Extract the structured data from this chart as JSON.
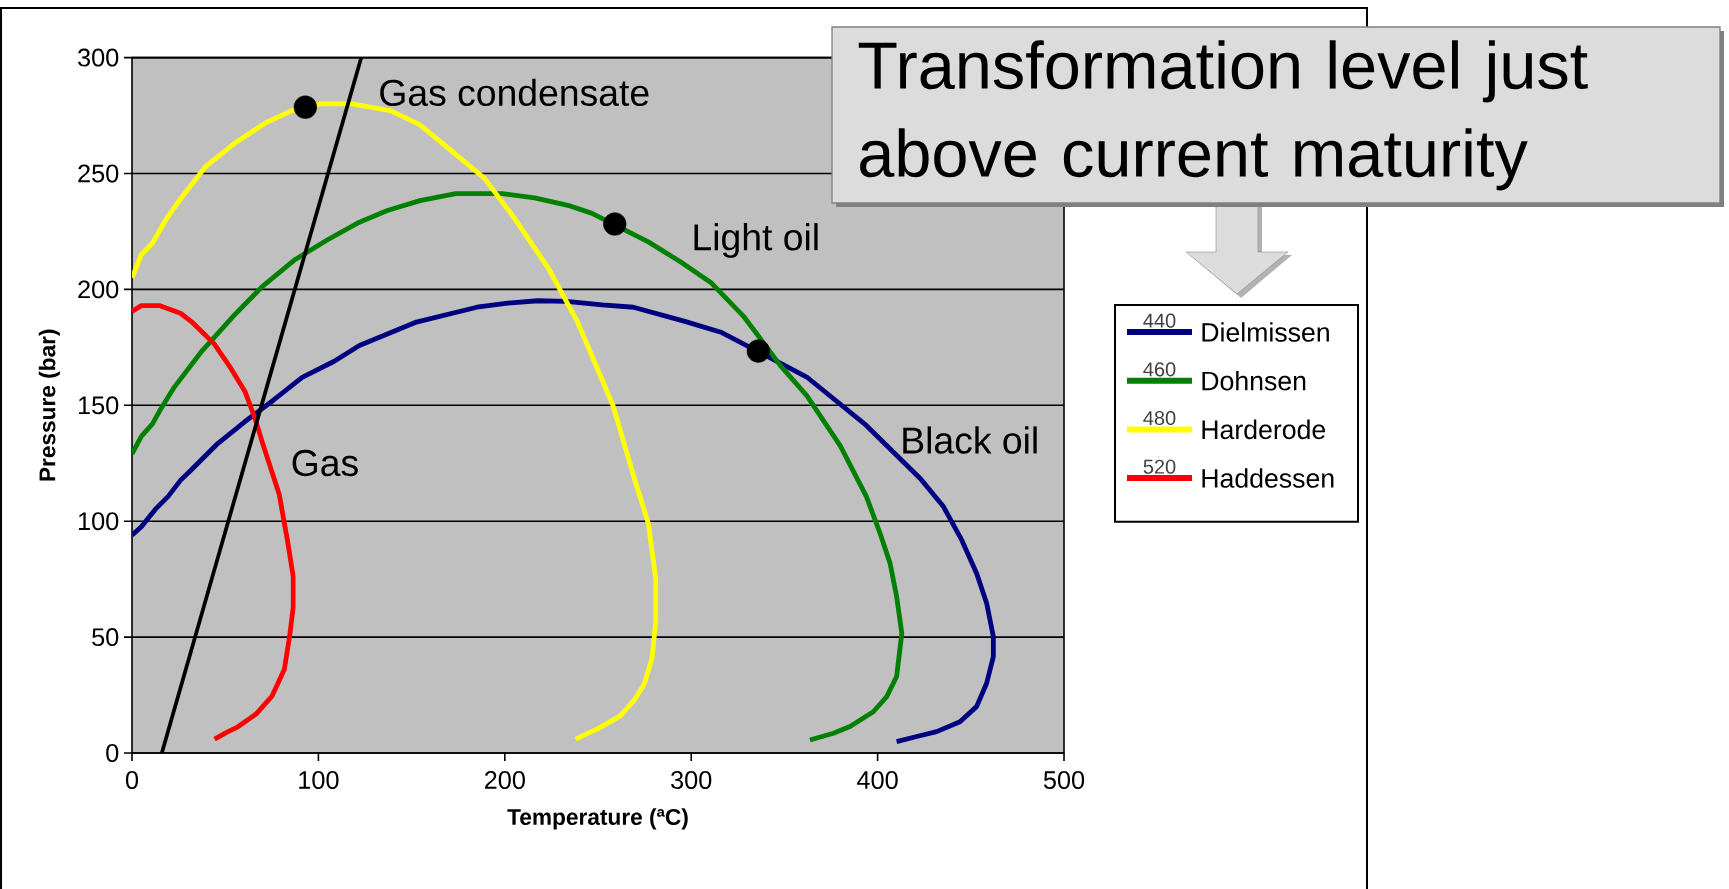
{
  "chart_data": {
    "type": "line",
    "xlabel": "Temperature (ªC)",
    "ylabel": "Pressure (bar)",
    "xlim": [
      0,
      500
    ],
    "xticks": [
      0,
      100,
      200,
      300,
      400,
      500
    ],
    "ylim": [
      0,
      300
    ],
    "yticks": [
      0,
      50,
      100,
      150,
      200,
      250,
      300
    ],
    "grid": "y",
    "legend": "right",
    "series": [
      {
        "name": "Dielmissen",
        "color": "#000080",
        "x": [
          0,
          5,
          12.7,
          19.4,
          26,
          32,
          45.3,
          60.6,
          76,
          91.3,
          108.5,
          122,
          152.6,
          185,
          200.5,
          217.7,
          233,
          252.2,
          269,
          296.6,
          316.4,
          336.3,
          362,
          393.8,
          423,
          435.3,
          445.1,
          453.1,
          458.5,
          462.1,
          462.1,
          458.5,
          453.1,
          444.2,
          431.7,
          421,
          410.2
        ],
        "values": [
          94,
          97.6,
          105.3,
          110.7,
          117.6,
          122.3,
          133,
          143,
          152.3,
          162,
          169,
          175.8,
          185.9,
          192.3,
          194,
          195.1,
          194.8,
          193.3,
          192.3,
          186.2,
          181.4,
          null,
          162.2,
          141.4,
          118.3,
          106.3,
          91.9,
          77.5,
          64.6,
          50.2,
          41.6,
          30.1,
          20,
          13.5,
          9.2,
          7.1,
          4.9
        ]
      },
      {
        "name": "Dohnsen",
        "color": "#008000",
        "x": [
          0,
          5,
          11,
          14.6,
          22.3,
          37.6,
          55,
          70,
          87.4,
          104.7,
          122,
          137,
          154.5,
          173.7,
          198.6,
          216,
          235,
          246.5,
          259,
          277,
          294,
          310.5,
          328,
          348,
          362,
          380,
          394,
          401.3,
          406.7,
          410.2,
          413,
          410.2,
          404.9,
          397.7,
          385.2,
          376.3,
          363.7
        ],
        "values": [
          129,
          136.6,
          142,
          147.3,
          157.4,
          173.5,
          189,
          201.3,
          212.8,
          221.3,
          229,
          234,
          238.3,
          241.3,
          241.3,
          239.5,
          236,
          232.9,
          null,
          220.5,
          212,
          203,
          188.5,
          167,
          154.2,
          132.5,
          110.6,
          94.8,
          81.8,
          67.5,
          51.6,
          33,
          24.3,
          17.8,
          11.4,
          8.5,
          5.6
        ]
      },
      {
        "name": "Harderode",
        "color": "#ffff00",
        "x": [
          0,
          5,
          11,
          18.5,
          26,
          39.5,
          55,
          72,
          85.5,
          101,
          118,
          139,
          154.5,
          174,
          189,
          204,
          223.5,
          239,
          258,
          269.5,
          277,
          281,
          281,
          279,
          275,
          269.5,
          262,
          250,
          238
        ],
        "values": [
          205,
          215,
          220,
          230.5,
          239,
          253,
          263,
          272,
          277,
          280,
          280,
          277,
          271,
          258,
          248,
          232,
          209,
          186,
          150,
          118.4,
          99,
          75,
          57,
          41,
          30,
          22.9,
          16,
          10.5,
          6
        ]
      },
      {
        "name": "Haddessen",
        "color": "#ff0000",
        "x": [
          0,
          5,
          14.6,
          26,
          32,
          44,
          53,
          60.6,
          66,
          70,
          79,
          83.6,
          86.5,
          86.5,
          84.6,
          81.7,
          75,
          66.4,
          56.8,
          51,
          44.3
        ],
        "values": [
          190.5,
          193,
          193,
          189.7,
          186,
          176.6,
          166,
          156,
          144.3,
          133.8,
          111.5,
          90.7,
          76,
          63,
          50.6,
          36,
          24.4,
          16.7,
          11.3,
          9,
          6
        ]
      },
      {
        "type": "line",
        "color": "#000000",
        "x": [
          16,
          123
        ],
        "values": [
          0,
          300
        ]
      },
      {
        "type": "scatter",
        "marker": "circle",
        "color": "#000000",
        "x": [
          93,
          259,
          336
        ],
        "values": [
          278.6,
          228.2,
          173.4
        ]
      }
    ],
    "annotations": [
      "Gas condensate",
      "Light oil",
      "Black oil",
      "Gas",
      "Transformation level just above current maturity",
      "440",
      "460",
      "480",
      "520"
    ]
  }
}
